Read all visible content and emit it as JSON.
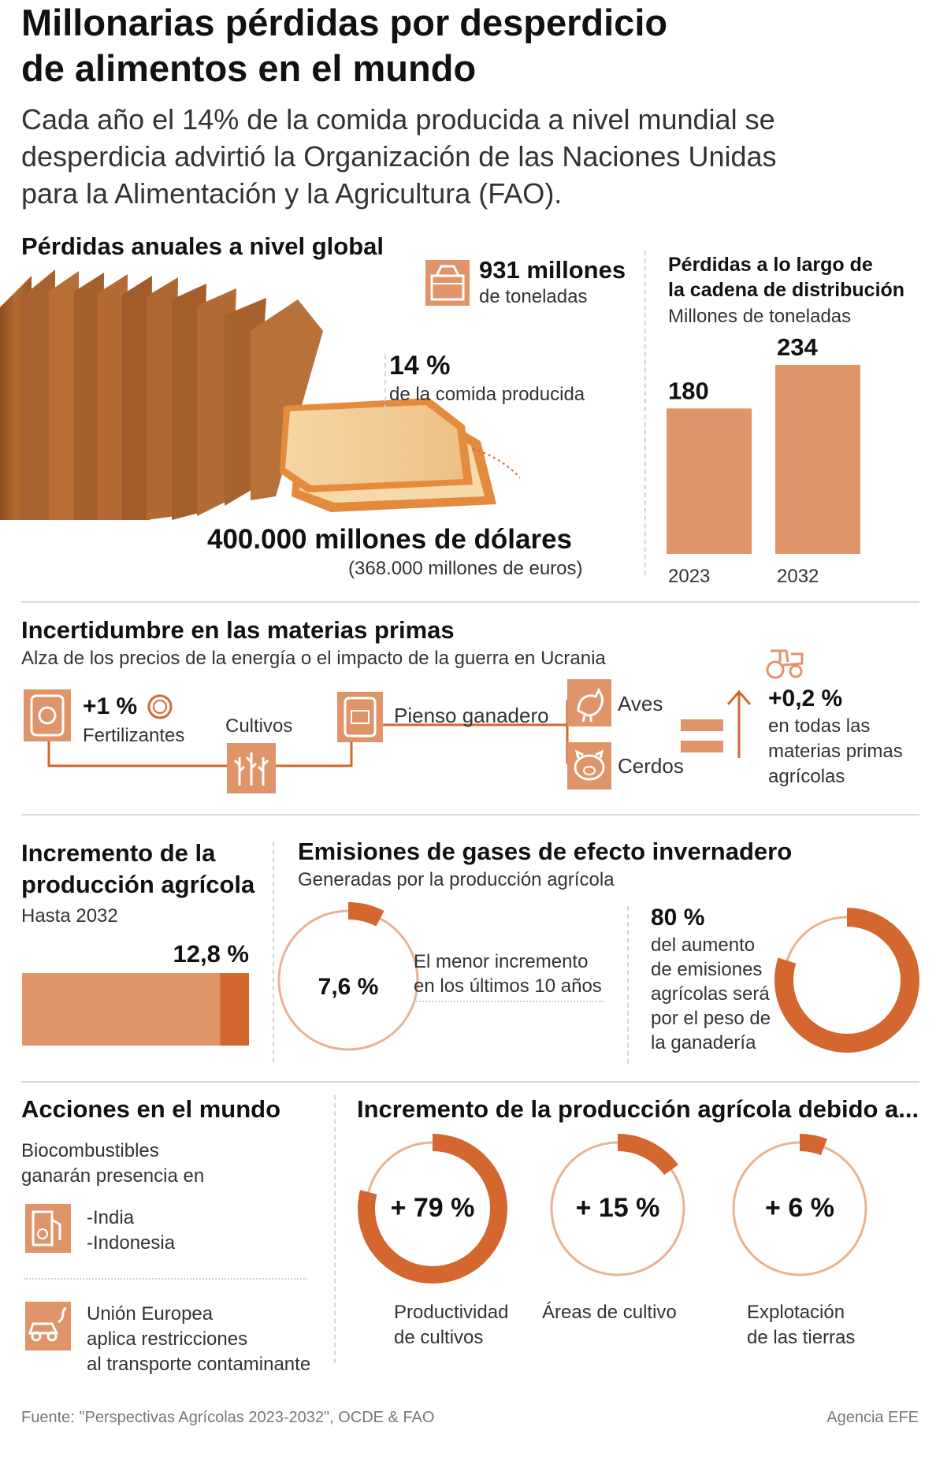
{
  "header": {
    "title_line1": "Millonarias pérdidas por desperdicio",
    "title_line2": "de alimentos en el mundo",
    "subtitle_line1": "Cada año el 14% de la comida producida a nivel mundial se",
    "subtitle_line2": "desperdicia advirtió la Organización de las Naciones Unidas",
    "subtitle_line3": "para la Alimentación y la Agricultura (FAO)."
  },
  "global": {
    "heading": "Pérdidas anuales a nivel global",
    "tonnes_value": "931 millones",
    "tonnes_unit": "de toneladas",
    "percent_value": "14 %",
    "percent_desc": "de la comida producida",
    "dollars": "400.000 millones de dólares",
    "euros": "(368.000 millones de euros)"
  },
  "chain": {
    "heading_line1": "Pérdidas a lo largo de",
    "heading_line2": "la cadena de distribución",
    "unit": "Millones de toneladas"
  },
  "raw": {
    "heading": "Incertidumbre en las materias primas",
    "sub": "Alza de los precios de la energía o el impacto de la guerra en Ucrania",
    "fert_value": "+1 %",
    "fert_label": "Fertilizantes",
    "crops_label": "Cultivos",
    "feed_label": "Pienso ganadero",
    "birds_label": "Aves",
    "pigs_label": "Cerdos",
    "result_value": "+0,2 %",
    "result_line1": "en todas las",
    "result_line2": "materias primas",
    "result_line3": "agrícolas"
  },
  "increase": {
    "heading_line1": "Incremento de la",
    "heading_line2": "producción agrícola",
    "sub": "Hasta 2032",
    "label": "12,8 %"
  },
  "emissions": {
    "heading": "Emisiones de gases de efecto invernadero",
    "sub": "Generadas por la producción agrícola",
    "small_label": "7,6 %",
    "small_desc_line1": "El menor incremento",
    "small_desc_line2": "en los últimos 10 años",
    "big_value": "80 %",
    "big_line1": "del aumento",
    "big_line2": "de emisiones",
    "big_line3": "agrícolas será",
    "big_line4": "por el peso de",
    "big_line5": "la ganadería"
  },
  "actions": {
    "heading": "Acciones en el mundo",
    "bio_line1": "Biocombustibles",
    "bio_line2": "ganarán presencia en",
    "country1": "-India",
    "country2": "-Indonesia",
    "eu_line1": "Unión Europea",
    "eu_line2": "aplica restricciones",
    "eu_line3": "al transporte contaminante"
  },
  "drivers": {
    "heading": "Incremento de la producción agrícola debido a...",
    "d1_label": "+ 79 %",
    "d1_line1": "Productividad",
    "d1_line2": "de cultivos",
    "d2_label": "+ 15 %",
    "d2_line1": "Áreas de cultivo",
    "d3_label": "+ 6 %",
    "d3_line1": "Explotación",
    "d3_line2": "de las tierras"
  },
  "footer": {
    "source": "Fuente: \"Perspectivas Agrícolas 2023-2032\", OCDE & FAO",
    "agency": "Agencia EFE"
  },
  "colors": {
    "accent": "#d4672f",
    "bar": "#e0946a",
    "ring_light": "#e7b393"
  },
  "chart_data": [
    {
      "type": "bar",
      "title": "Pérdidas a lo largo de la cadena de distribución",
      "ylabel": "Millones de toneladas",
      "categories": [
        "2023",
        "2032"
      ],
      "values": [
        180,
        234
      ],
      "ylim": [
        0,
        234
      ]
    },
    {
      "type": "bar",
      "title": "Incremento de la producción agrícola",
      "categories": [
        "Hasta 2032"
      ],
      "values": [
        12.8
      ]
    },
    {
      "type": "pie",
      "title": "Emisiones de gases de efecto invernadero",
      "categories": [
        "El menor incremento en los últimos 10 años",
        "del aumento de emisiones agrícolas será por el peso de la ganadería"
      ],
      "values": [
        7.6,
        80
      ]
    },
    {
      "type": "pie",
      "title": "Incremento de la producción agrícola debido a...",
      "categories": [
        "Productividad de cultivos",
        "Áreas de cultivo",
        "Explotación de las tierras"
      ],
      "values": [
        79,
        15,
        6
      ]
    }
  ]
}
